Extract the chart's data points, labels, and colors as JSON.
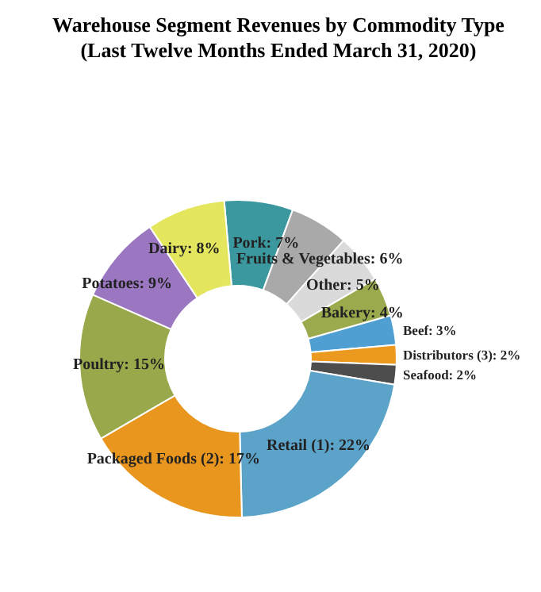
{
  "chart_data": {
    "type": "donut",
    "title": "Warehouse Segment Revenues by Commodity Type",
    "subtitle": "(Last Twelve Months Ended March 31, 2020)",
    "categories": [
      "Pork",
      "Fruits & Vegetables",
      "Other",
      "Bakery",
      "Beef",
      "Distributors (3)",
      "Seafood",
      "Retail (1)",
      "Packaged Foods (2)",
      "Poultry",
      "Potatoes",
      "Dairy"
    ],
    "values": [
      7,
      6,
      5,
      4,
      3,
      2,
      2,
      22,
      17,
      15,
      9,
      8
    ],
    "value_labels": [
      "7%",
      "6%",
      "5%",
      "4%",
      "3%",
      "2%",
      "2%",
      "22%",
      "17%",
      "15%",
      "9%",
      "8%"
    ],
    "colors": [
      "#3a989e",
      "#a9a9a9",
      "#dadada",
      "#9aaa4c",
      "#4f9fd2",
      "#eb9a1f",
      "#4d4d4d",
      "#5ba3c9",
      "#e8961e",
      "#98a84a",
      "#9b76c1",
      "#e4e65e"
    ],
    "legend": false
  }
}
